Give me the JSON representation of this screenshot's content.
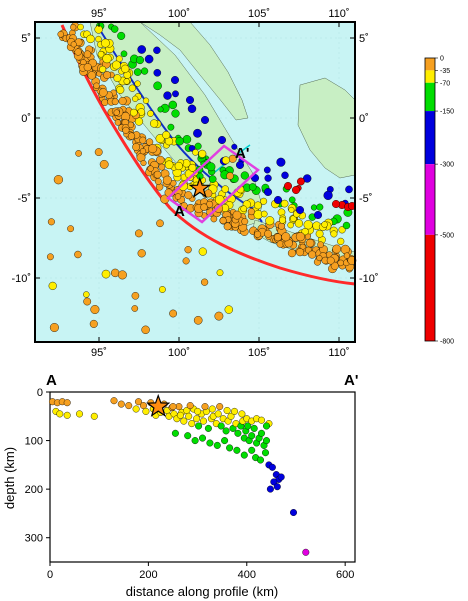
{
  "map": {
    "lon_ticks": [
      {
        "v": 95,
        "label": "95˚"
      },
      {
        "v": 100,
        "label": "100˚"
      },
      {
        "v": 105,
        "label": "105˚"
      },
      {
        "v": 110,
        "label": "110˚"
      }
    ],
    "lat_ticks": [
      {
        "v": 5,
        "label": "5˚"
      },
      {
        "v": 0,
        "label": "0˚"
      },
      {
        "v": -5,
        "label": "-5˚"
      },
      {
        "v": -10,
        "label": "-10˚"
      }
    ],
    "lon_range": [
      91,
      111
    ],
    "lat_range": [
      -14,
      6
    ],
    "ocean_color": "#c8f4f4",
    "land_color": "#c8efc4",
    "trench_color": "#ff2a2a",
    "profile_color": "#e040e0",
    "profile_end_labels": {
      "start": "A",
      "end": "A'"
    },
    "mainshock": {
      "lon": 101.3,
      "lat": -4.4
    }
  },
  "colorbar": {
    "labels": [
      "0",
      "-35",
      "-70",
      "-150",
      "-300",
      "-500",
      "-800"
    ],
    "colors": [
      "#f6a020",
      "#ffee00",
      "#00dd00",
      "#0000dd",
      "#e000e0",
      "#ee0000"
    ]
  },
  "chart_data": {
    "type": "scatter",
    "xlabel": "distance along profile (km)",
    "ylabel": "depth (km)",
    "xlim": [
      0,
      620
    ],
    "ylim": [
      0,
      350
    ],
    "x_ticks": [
      0,
      200,
      400,
      600
    ],
    "y_ticks": [
      0,
      100,
      200,
      300
    ],
    "start_label": "A",
    "end_label": "A'",
    "mainshock": {
      "x": 220,
      "y": 30
    },
    "points": [
      [
        5,
        20
      ],
      [
        15,
        22
      ],
      [
        25,
        20
      ],
      [
        35,
        22
      ],
      [
        12,
        40
      ],
      [
        20,
        45
      ],
      [
        35,
        48
      ],
      [
        60,
        45
      ],
      [
        90,
        50
      ],
      [
        130,
        18
      ],
      [
        145,
        25
      ],
      [
        160,
        28
      ],
      [
        175,
        35
      ],
      [
        180,
        20
      ],
      [
        190,
        28
      ],
      [
        195,
        40
      ],
      [
        205,
        22
      ],
      [
        210,
        35
      ],
      [
        215,
        48
      ],
      [
        225,
        42
      ],
      [
        232,
        25
      ],
      [
        238,
        38
      ],
      [
        242,
        50
      ],
      [
        248,
        32
      ],
      [
        252,
        45
      ],
      [
        258,
        55
      ],
      [
        262,
        30
      ],
      [
        268,
        42
      ],
      [
        272,
        60
      ],
      [
        278,
        38
      ],
      [
        282,
        50
      ],
      [
        288,
        65
      ],
      [
        292,
        35
      ],
      [
        298,
        55
      ],
      [
        302,
        70
      ],
      [
        308,
        45
      ],
      [
        312,
        60
      ],
      [
        318,
        40
      ],
      [
        322,
        75
      ],
      [
        328,
        55
      ],
      [
        332,
        50
      ],
      [
        338,
        65
      ],
      [
        342,
        45
      ],
      [
        348,
        70
      ],
      [
        352,
        55
      ],
      [
        358,
        80
      ],
      [
        362,
        60
      ],
      [
        368,
        50
      ],
      [
        372,
        75
      ],
      [
        378,
        65
      ],
      [
        382,
        85
      ],
      [
        388,
        70
      ],
      [
        392,
        60
      ],
      [
        395,
        95
      ],
      [
        398,
        80
      ],
      [
        402,
        70
      ],
      [
        405,
        100
      ],
      [
        410,
        90
      ],
      [
        415,
        75
      ],
      [
        420,
        105
      ],
      [
        425,
        95
      ],
      [
        430,
        85
      ],
      [
        435,
        110
      ],
      [
        440,
        100
      ],
      [
        445,
        65
      ],
      [
        250,
        30
      ],
      [
        265,
        48
      ],
      [
        285,
        28
      ],
      [
        300,
        40
      ],
      [
        315,
        30
      ],
      [
        330,
        35
      ],
      [
        345,
        30
      ],
      [
        360,
        38
      ],
      [
        375,
        40
      ],
      [
        390,
        45
      ],
      [
        400,
        55
      ],
      [
        410,
        60
      ],
      [
        420,
        55
      ],
      [
        430,
        58
      ],
      [
        440,
        70
      ],
      [
        255,
        85
      ],
      [
        280,
        90
      ],
      [
        295,
        100
      ],
      [
        310,
        95
      ],
      [
        325,
        105
      ],
      [
        340,
        110
      ],
      [
        355,
        100
      ],
      [
        365,
        115
      ],
      [
        380,
        120
      ],
      [
        395,
        130
      ],
      [
        410,
        120
      ],
      [
        418,
        135
      ],
      [
        428,
        140
      ],
      [
        438,
        125
      ],
      [
        445,
        150
      ],
      [
        452,
        155
      ],
      [
        460,
        170
      ],
      [
        465,
        180
      ],
      [
        455,
        185
      ],
      [
        448,
        200
      ],
      [
        462,
        195
      ],
      [
        470,
        175
      ],
      [
        495,
        248
      ],
      [
        520,
        330
      ]
    ]
  }
}
